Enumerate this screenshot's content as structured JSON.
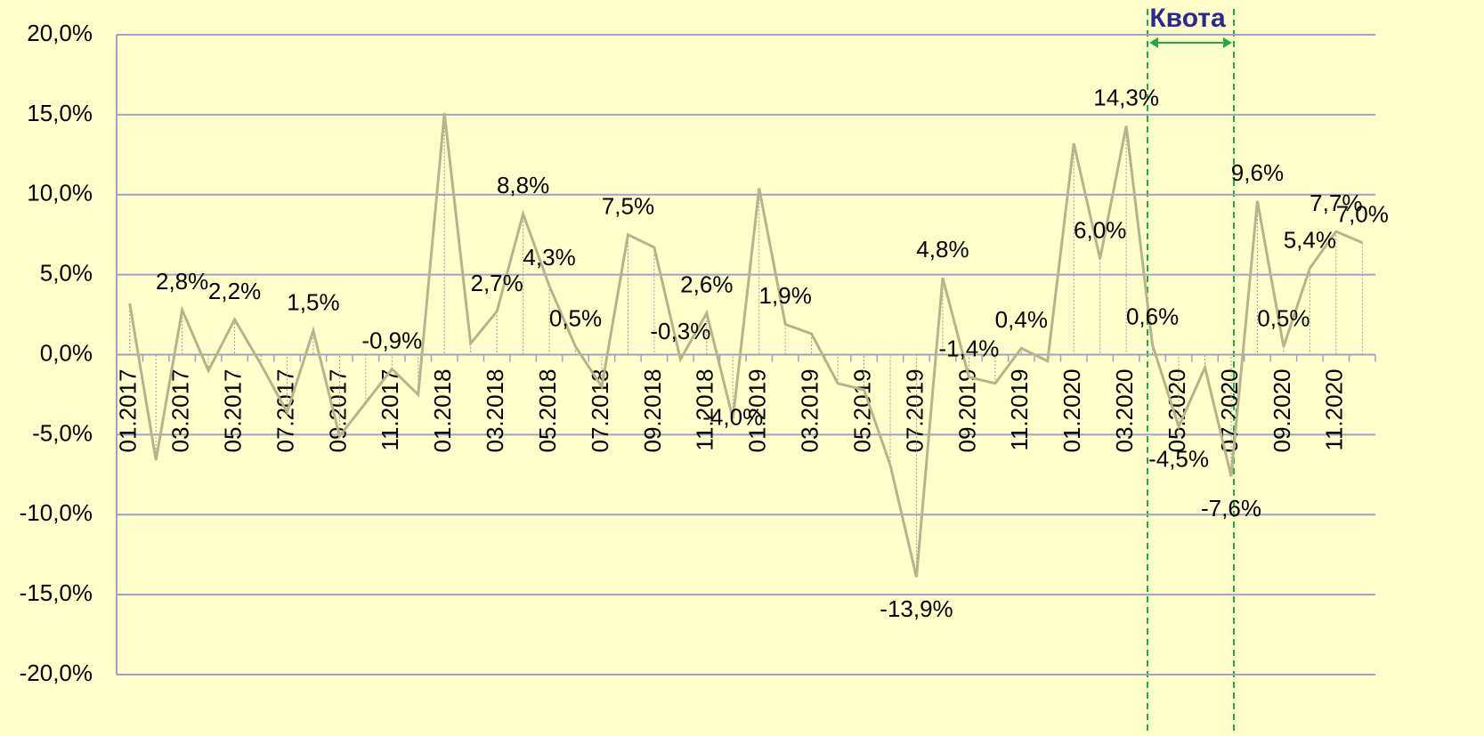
{
  "chart_data": {
    "type": "line",
    "annotation": "Квота",
    "categories": [
      "01.2017",
      null,
      "03.2017",
      null,
      "05.2017",
      null,
      "07.2017",
      null,
      "09.2017",
      null,
      "11.2017",
      null,
      "01.2018",
      null,
      "03.2018",
      null,
      "05.2018",
      null,
      "07.2018",
      null,
      "09.2018",
      null,
      "11.2018",
      null,
      "01.2019",
      null,
      "03.2019",
      null,
      "05.2019",
      null,
      "07.2019",
      null,
      "09.2019",
      null,
      "11.2019",
      null,
      "01.2020",
      null,
      "03.2020",
      null,
      "05.2020",
      null,
      "07.2020",
      null,
      "09.2020",
      null,
      "11.2020",
      null
    ],
    "series": [
      {
        "color": "#b5b58c",
        "values": [
          3.2,
          -6.6,
          2.8,
          -1.0,
          2.2,
          -0.6,
          -3.6,
          1.5,
          -5.1,
          -3.0,
          -0.9,
          -2.5,
          15.1,
          0.7,
          2.7,
          8.8,
          4.3,
          0.5,
          -2.0,
          7.5,
          6.7,
          -0.3,
          2.6,
          -4.0,
          10.4,
          1.9,
          1.3,
          -1.8,
          -2.2,
          -6.9,
          -13.9,
          4.8,
          -1.4,
          -1.8,
          0.4,
          -0.4,
          13.2,
          6.0,
          14.3,
          0.6,
          -4.5,
          -0.8,
          -7.6,
          9.6,
          0.5,
          5.4,
          7.7,
          7.0
        ],
        "value_labels": [
          null,
          null,
          "2,8%",
          null,
          "2,2%",
          null,
          null,
          "1,5%",
          null,
          null,
          "-0,9%",
          null,
          null,
          null,
          "2,7%",
          "8,8%",
          "4,3%",
          "0,5%",
          null,
          "7,5%",
          null,
          "-0,3%",
          "2,6%",
          "-4,0%",
          null,
          "1,9%",
          null,
          null,
          null,
          null,
          "-13,9%",
          "4,8%",
          "-1,4%",
          null,
          "0,4%",
          null,
          null,
          "6,0%",
          "14,3%",
          "0,6%",
          "-4,5%",
          null,
          "-7,6%",
          "9,6%",
          "0,5%",
          "5,4%",
          "7,7%",
          "7,0%"
        ]
      }
    ],
    "ylim": [
      -20,
      20
    ],
    "yticks": [
      {
        "value": -20,
        "label": "-20,0%"
      },
      {
        "value": -15,
        "label": "-15,0%"
      },
      {
        "value": -10,
        "label": "-10,0%"
      },
      {
        "value": -5,
        "label": "-5,0%"
      },
      {
        "value": 0,
        "label": "0,0%"
      },
      {
        "value": 5,
        "label": "5,0%"
      },
      {
        "value": 10,
        "label": "10,0%"
      },
      {
        "value": 15,
        "label": "15,0%"
      },
      {
        "value": 20,
        "label": "20,0%"
      }
    ],
    "grid": true
  }
}
